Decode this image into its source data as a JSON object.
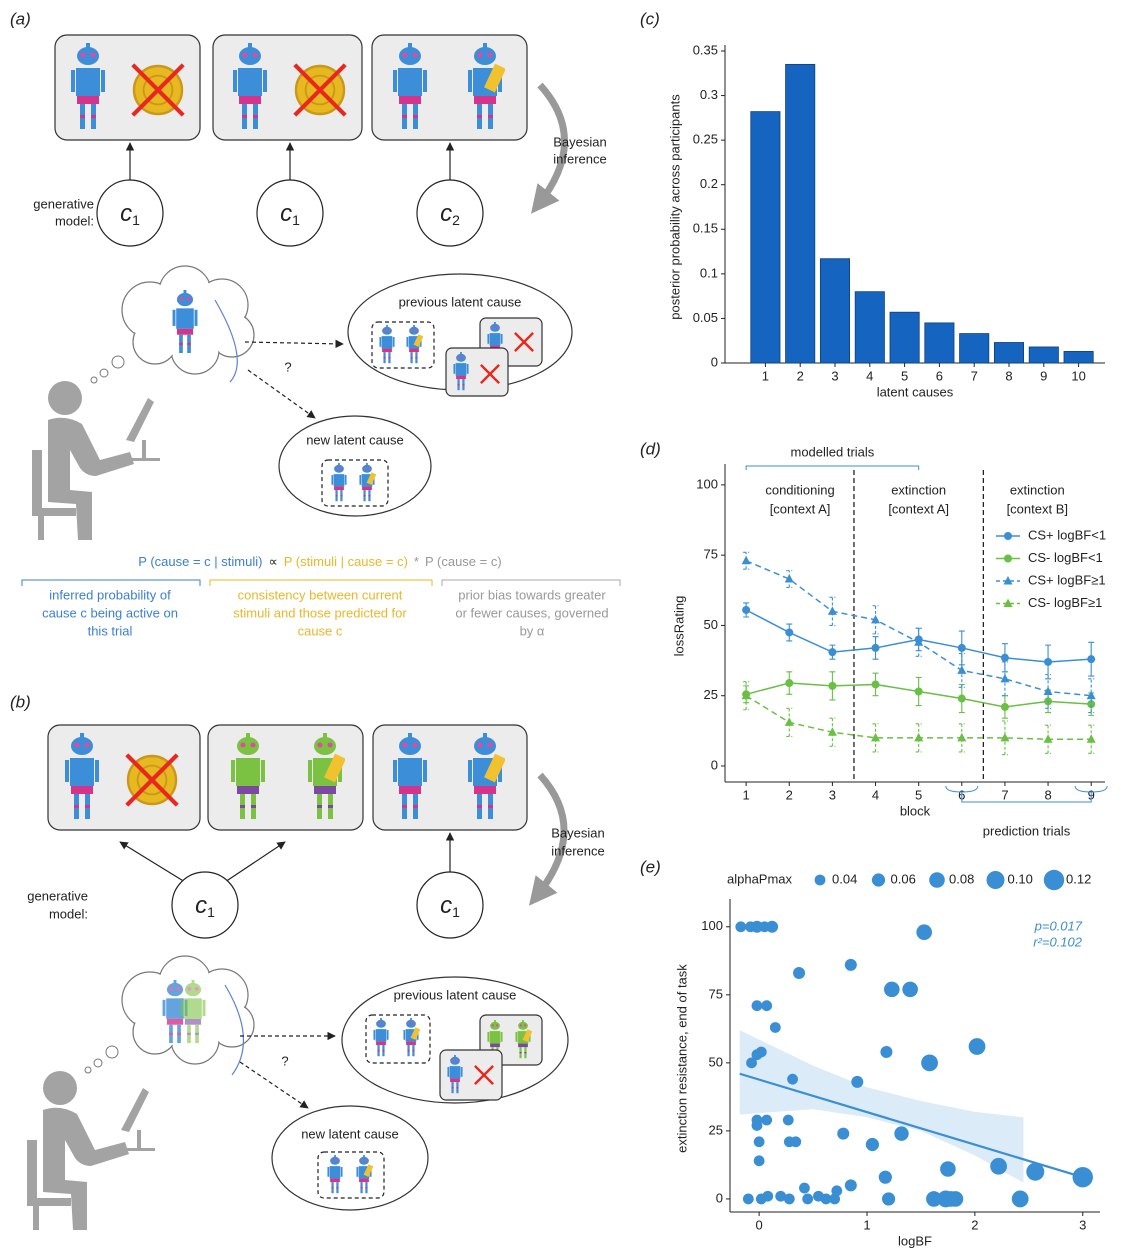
{
  "diagram_a": {
    "label": "(a)",
    "bayes": [
      "Bayesian",
      "inference"
    ],
    "generative": [
      "generative",
      "model:"
    ],
    "nodes": [
      {
        "base": "c",
        "sub": "1"
      },
      {
        "base": "c",
        "sub": "1"
      },
      {
        "base": "c",
        "sub": "2"
      }
    ],
    "question": "?",
    "previous": "previous latent cause",
    "new": "new latent cause",
    "equation": {
      "term1": "P (cause = c | stimuli)",
      "prop": "∝",
      "term2": "P (stimuli | cause = c)",
      "times": "*",
      "term3": "P (cause = c)"
    },
    "explanations": [
      [
        "inferred probability of",
        "cause c being active on",
        "this trial"
      ],
      [
        "consistency between current",
        "stimuli and those predicted for",
        "cause c"
      ],
      [
        "prior bias towards greater",
        "or fewer causes, governed",
        "by α"
      ]
    ]
  },
  "diagram_b": {
    "label": "(b)",
    "bayes": [
      "Bayesian",
      "inference"
    ],
    "generative": [
      "generative",
      "model:"
    ],
    "nodes": [
      {
        "base": "c",
        "sub": "1"
      },
      {
        "base": "c",
        "sub": "1"
      }
    ],
    "question": "?",
    "previous": "previous latent cause",
    "new": "new latent cause"
  },
  "chart_data": [
    {
      "type": "bar",
      "panel_label": "(c)",
      "categories": [
        "1",
        "2",
        "3",
        "4",
        "5",
        "6",
        "7",
        "8",
        "9",
        "10"
      ],
      "values": [
        0.282,
        0.335,
        0.117,
        0.08,
        0.057,
        0.045,
        0.033,
        0.023,
        0.018,
        0.013
      ],
      "color": "#1565c0",
      "ylim": [
        0,
        0.35
      ],
      "yticks": [
        0,
        0.05,
        0.1,
        0.15,
        0.2,
        0.25,
        0.3,
        0.35
      ],
      "xlabel": "latent causes",
      "ylabel": "posterior probability across participants"
    },
    {
      "type": "line",
      "panel_label": "(d)",
      "x": [
        1,
        2,
        3,
        4,
        5,
        6,
        7,
        8,
        9
      ],
      "xlim": [
        0.51,
        9.32
      ],
      "xticks": [
        1,
        2,
        3,
        4,
        5,
        6,
        7,
        8,
        9
      ],
      "ylim": [
        -5.7,
        105.3
      ],
      "yticks": [
        0,
        25,
        50,
        75,
        100
      ],
      "xlabel": "block",
      "ylabel": "lossRating",
      "legend": "right",
      "phase_boundaries": [
        3.5,
        6.5
      ],
      "annotations": {
        "modelled": "modelled trials",
        "phases": [
          [
            "conditioning",
            "[context A]"
          ],
          [
            "extinction",
            "[context A]"
          ],
          [
            "extinction",
            "[context B]"
          ]
        ],
        "prediction": "prediction trials"
      },
      "series": [
        {
          "name": "CS+ logBF<1",
          "color": "#3a8fd4",
          "marker": "circle",
          "dashed": false,
          "values": [
            55.5,
            47.5,
            40.5,
            42,
            45,
            42,
            38.5,
            37,
            38
          ],
          "errors": [
            2.5,
            3,
            2.5,
            4,
            4,
            6,
            5,
            6,
            6
          ]
        },
        {
          "name": "CS- logBF<1",
          "color": "#6abf45",
          "marker": "circle",
          "dashed": false,
          "values": [
            25.5,
            29.5,
            28.5,
            29,
            26.5,
            24,
            21,
            23,
            22
          ],
          "errors": [
            3,
            4,
            5,
            4,
            5,
            5,
            4,
            4,
            4
          ]
        },
        {
          "name": "CS+ logBF≥1",
          "color": "#3a8fd4",
          "marker": "triangle",
          "dashed": true,
          "values": [
            73,
            66.5,
            55,
            52,
            44,
            34,
            31,
            26.5,
            25
          ],
          "errors": [
            3,
            3,
            5,
            5,
            5,
            6,
            6,
            6,
            6
          ]
        },
        {
          "name": "CS- logBF≥1",
          "color": "#6abf45",
          "marker": "triangle",
          "dashed": true,
          "values": [
            25,
            15.5,
            12,
            10,
            10,
            10,
            10,
            9.5,
            9.5
          ],
          "errors": [
            5,
            5,
            5,
            5,
            5,
            5,
            6,
            5,
            5
          ]
        }
      ]
    },
    {
      "type": "scatter",
      "panel_label": "(e)",
      "color": "#3a8fd4",
      "x": [
        -0.17,
        -0.08,
        -0.02,
        0.05,
        0.12,
        1.53,
        0.37,
        0.85,
        1.23,
        1.4,
        -0.02,
        0.07,
        0.15,
        -0.07,
        -0.02,
        0.02,
        1.18,
        1.58,
        2.02,
        0.31,
        0.91,
        -0.02,
        0.07,
        0.27,
        0.28,
        0.34,
        -0.02,
        0.0,
        0.0,
        0.78,
        1.05,
        1.32,
        0.42,
        -0.1,
        0.02,
        0.08,
        0.2,
        0.28,
        0.45,
        0.55,
        0.62,
        0.7,
        0.72,
        0.85,
        1.17,
        1.2,
        1.62,
        1.73,
        1.78,
        1.82,
        1.75,
        2.22,
        2.42,
        2.56,
        3.0
      ],
      "y": [
        100,
        100,
        100,
        100,
        100,
        98,
        83,
        86,
        77,
        77,
        71,
        71,
        63,
        50,
        53,
        54,
        54,
        50,
        56,
        44,
        43,
        29,
        29,
        29,
        21,
        21,
        27,
        21,
        14,
        24,
        20,
        24,
        4,
        0,
        0,
        1,
        1,
        0,
        0,
        1,
        0,
        0,
        3,
        5,
        8,
        0,
        0,
        0,
        0,
        0,
        11,
        12,
        0,
        10,
        8
      ],
      "sizes": [
        0.04,
        0.04,
        0.05,
        0.04,
        0.05,
        0.08,
        0.05,
        0.05,
        0.08,
        0.08,
        0.04,
        0.04,
        0.04,
        0.04,
        0.04,
        0.04,
        0.05,
        0.09,
        0.09,
        0.04,
        0.05,
        0.04,
        0.04,
        0.04,
        0.04,
        0.04,
        0.04,
        0.04,
        0.04,
        0.05,
        0.06,
        0.07,
        0.04,
        0.04,
        0.04,
        0.04,
        0.04,
        0.04,
        0.04,
        0.04,
        0.04,
        0.04,
        0.04,
        0.05,
        0.06,
        0.06,
        0.08,
        0.09,
        0.08,
        0.08,
        0.08,
        0.09,
        0.09,
        0.1,
        0.12
      ],
      "xlim": [
        -0.27,
        3.16
      ],
      "xticks": [
        0,
        1,
        2,
        3
      ],
      "ylim": [
        -4.8,
        108
      ],
      "yticks": [
        0,
        25,
        50,
        75,
        100
      ],
      "xlabel": "logBF",
      "ylabel": "extinction resistance, end of task",
      "size_legend": {
        "title": "alphaPmax",
        "values": [
          0.04,
          0.06,
          0.08,
          {
            "value": 0.1,
            "label": "0.10"
          },
          0.12
        ]
      },
      "fit": {
        "x": [
          -0.18,
          3
        ],
        "y": [
          46,
          8
        ]
      },
      "band": {
        "x": [
          -0.18,
          0.5,
          1.0,
          1.5,
          2.0,
          2.45
        ],
        "upper": [
          62,
          49,
          41,
          36,
          32,
          30
        ],
        "lower": [
          31,
          33,
          30,
          25,
          16,
          6
        ]
      },
      "annotations": [
        "p=0.017",
        "r²=0.102"
      ]
    }
  ]
}
